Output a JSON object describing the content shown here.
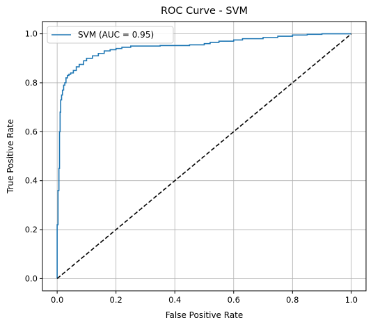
{
  "chart_data": {
    "type": "line",
    "title": "ROC Curve - SVM",
    "xlabel": "False Positive Rate",
    "ylabel": "True Positive Rate",
    "xlim": [
      -0.05,
      1.05
    ],
    "ylim": [
      -0.05,
      1.05
    ],
    "xticks": [
      0.0,
      0.2,
      0.4,
      0.6,
      0.8,
      1.0
    ],
    "yticks": [
      0.0,
      0.2,
      0.4,
      0.6,
      0.8,
      1.0
    ],
    "xtick_labels": [
      "0.0",
      "0.2",
      "0.4",
      "0.6",
      "0.8",
      "1.0"
    ],
    "ytick_labels": [
      "0.0",
      "0.2",
      "0.4",
      "0.6",
      "0.8",
      "1.0"
    ],
    "grid": true,
    "legend": {
      "placement": "top-left",
      "entries": [
        "SVM (AUC = 0.95)"
      ]
    },
    "series": [
      {
        "name": "SVM (AUC = 0.95)",
        "color": "#1f77b4",
        "style": "solid",
        "x": [
          0.0,
          0.0,
          0.003,
          0.003,
          0.006,
          0.006,
          0.008,
          0.008,
          0.01,
          0.01,
          0.012,
          0.012,
          0.015,
          0.015,
          0.018,
          0.018,
          0.022,
          0.022,
          0.026,
          0.026,
          0.03,
          0.03,
          0.035,
          0.035,
          0.04,
          0.04,
          0.046,
          0.046,
          0.055,
          0.055,
          0.065,
          0.065,
          0.075,
          0.075,
          0.09,
          0.09,
          0.1,
          0.1,
          0.12,
          0.12,
          0.14,
          0.14,
          0.16,
          0.16,
          0.18,
          0.18,
          0.2,
          0.2,
          0.22,
          0.22,
          0.25,
          0.25,
          0.35,
          0.35,
          0.45,
          0.45,
          0.5,
          0.5,
          0.52,
          0.52,
          0.55,
          0.55,
          0.6,
          0.6,
          0.63,
          0.63,
          0.7,
          0.7,
          0.75,
          0.75,
          0.8,
          0.8,
          0.85,
          0.85,
          0.9,
          0.9,
          1.0
        ],
        "y": [
          0.0,
          0.22,
          0.22,
          0.36,
          0.36,
          0.45,
          0.45,
          0.6,
          0.6,
          0.68,
          0.68,
          0.73,
          0.73,
          0.75,
          0.75,
          0.77,
          0.77,
          0.79,
          0.79,
          0.8,
          0.8,
          0.82,
          0.82,
          0.83,
          0.83,
          0.835,
          0.835,
          0.84,
          0.84,
          0.85,
          0.85,
          0.865,
          0.865,
          0.875,
          0.875,
          0.89,
          0.89,
          0.9,
          0.9,
          0.91,
          0.91,
          0.92,
          0.92,
          0.93,
          0.93,
          0.935,
          0.935,
          0.94,
          0.94,
          0.945,
          0.945,
          0.95,
          0.95,
          0.952,
          0.952,
          0.955,
          0.955,
          0.96,
          0.96,
          0.965,
          0.965,
          0.97,
          0.97,
          0.975,
          0.975,
          0.98,
          0.98,
          0.985,
          0.985,
          0.99,
          0.99,
          0.995,
          0.995,
          0.998,
          0.998,
          1.0,
          1.0
        ]
      },
      {
        "name": "",
        "color": "#000000",
        "style": "dashed",
        "x": [
          0.0,
          1.0
        ],
        "y": [
          0.0,
          1.0
        ]
      }
    ]
  }
}
